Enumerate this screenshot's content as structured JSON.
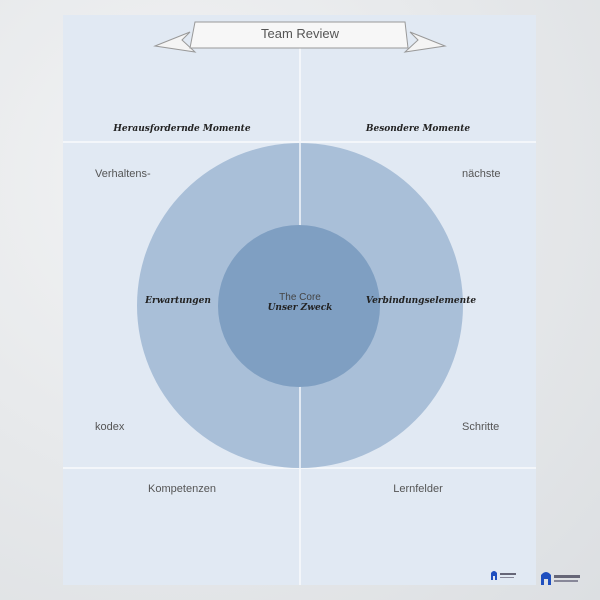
{
  "title": "Team Review",
  "quadrants": {
    "top_left": "Herausfordernde Momente",
    "top_right": "Besondere Momente",
    "bottom_left": "Kompetenzen",
    "bottom_right": "Lernfelder"
  },
  "sides": {
    "left_top": "Verhaltens-",
    "left_bottom": "kodex",
    "right_top": "nächste",
    "right_bottom": "Schritte"
  },
  "ring": {
    "left": "Erwartungen",
    "right": "Verbindungselemente"
  },
  "core": {
    "line1": "The Core",
    "line2": "Unser Zweck"
  },
  "colors": {
    "board": "#e1e9f3",
    "outer_ring": "#a9bfd8",
    "core": "#7f9fc2",
    "logo": "#1f4fbf"
  },
  "logo_icon": "house-arch-logo"
}
